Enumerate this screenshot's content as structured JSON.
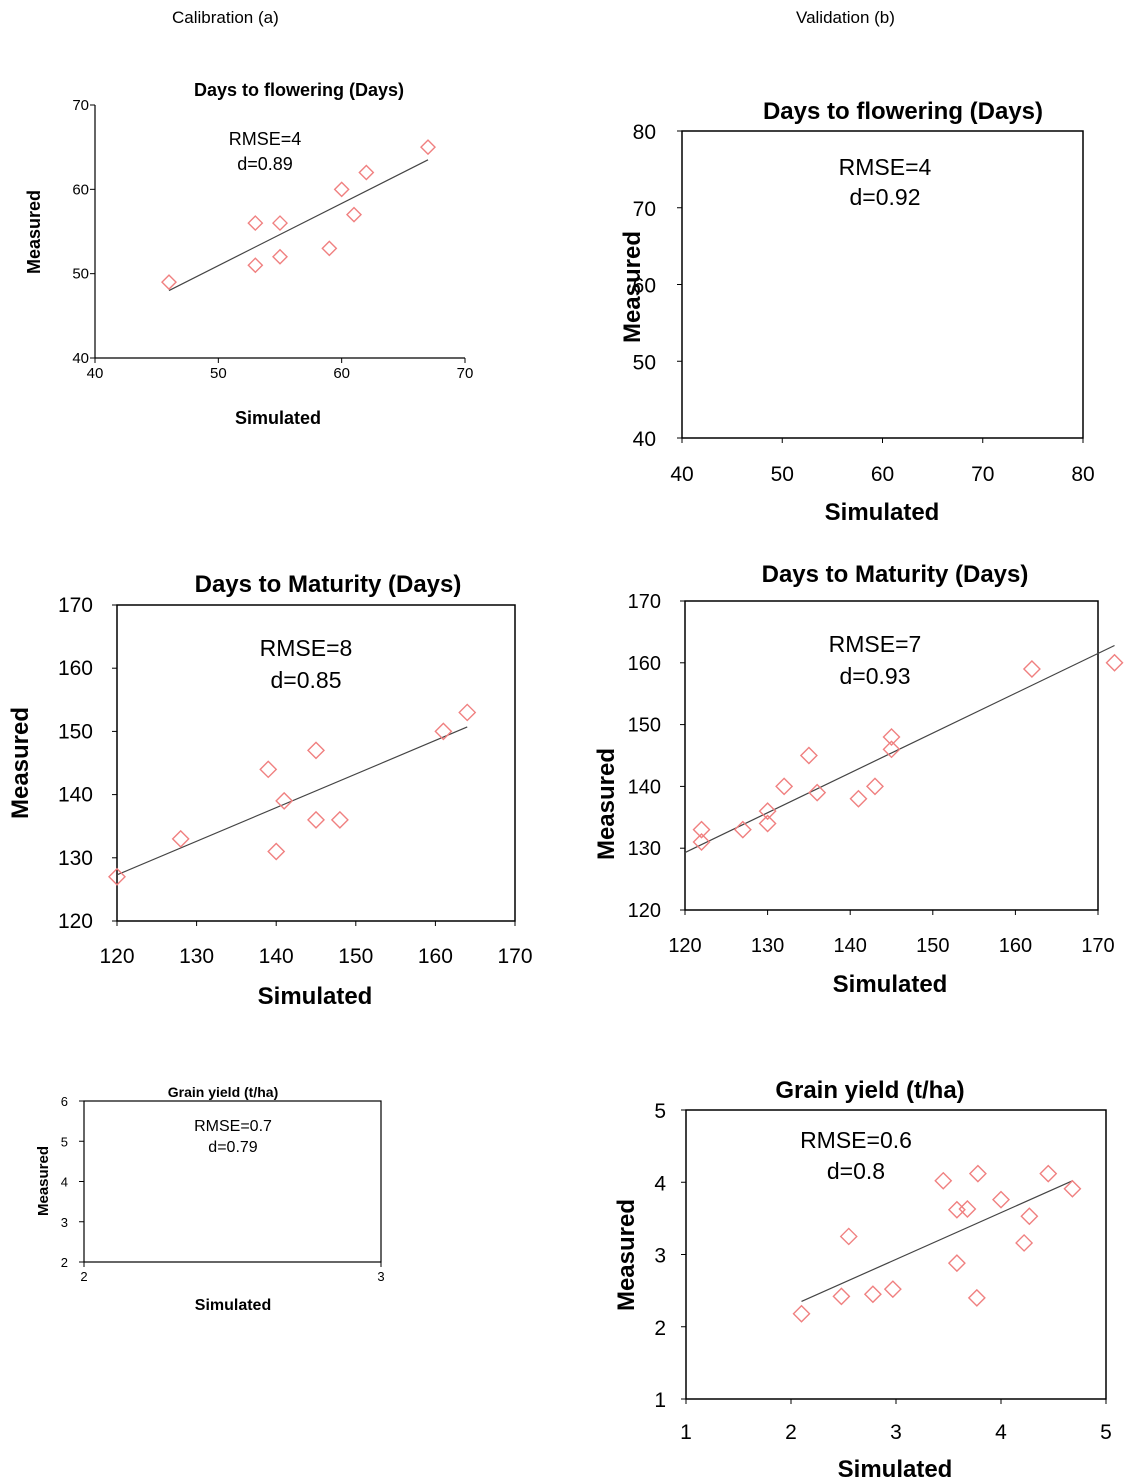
{
  "columns": {
    "left": "Calibration (a)",
    "right": "Validation (b)"
  },
  "chart_data": [
    {
      "type": "scatter",
      "panel": "calibration",
      "title": "Days to flowering  (Days)",
      "xlabel": "Simulated",
      "ylabel": "Measured",
      "xlim": [
        40,
        70
      ],
      "ylim": [
        40,
        70
      ],
      "xticks": [
        40,
        50,
        60,
        70
      ],
      "yticks": [
        40,
        50,
        60,
        70
      ],
      "stats": [
        "RMSE=4",
        "d=0.89"
      ],
      "points": [
        [
          46,
          49
        ],
        [
          53,
          56
        ],
        [
          53,
          51
        ],
        [
          55,
          56
        ],
        [
          55,
          52
        ],
        [
          59,
          53
        ],
        [
          60,
          60
        ],
        [
          61,
          57
        ],
        [
          62,
          62
        ],
        [
          67,
          65
        ]
      ],
      "trendline": [
        [
          46,
          48
        ],
        [
          67,
          63.5
        ]
      ],
      "marker_color": "#f08080"
    },
    {
      "type": "scatter",
      "panel": "validation",
      "title": "Days to flowering  (Days)",
      "xlabel": "Simulated",
      "ylabel": "Measured",
      "xlim": [
        40,
        80
      ],
      "ylim": [
        40,
        80
      ],
      "xticks": [
        40,
        50,
        60,
        70,
        80
      ],
      "yticks": [
        40,
        50,
        60,
        70,
        80
      ],
      "stats": [
        "RMSE=4",
        "d=0.92"
      ],
      "points": [],
      "trendline": [],
      "marker_color": "#f08080"
    },
    {
      "type": "scatter",
      "panel": "calibration",
      "title": "Days to Maturity  (Days)",
      "xlabel": "Simulated",
      "ylabel": "Measured",
      "xlim": [
        120,
        170
      ],
      "ylim": [
        120,
        170
      ],
      "xticks": [
        120,
        130,
        140,
        150,
        160,
        170
      ],
      "yticks": [
        120,
        130,
        140,
        150,
        160,
        170
      ],
      "stats": [
        "RMSE=8",
        "d=0.85"
      ],
      "points": [
        [
          120,
          127
        ],
        [
          128,
          133
        ],
        [
          139,
          144
        ],
        [
          140,
          131
        ],
        [
          141,
          139
        ],
        [
          145,
          147
        ],
        [
          145,
          136
        ],
        [
          148,
          136
        ],
        [
          161,
          150
        ],
        [
          164,
          153
        ]
      ],
      "trendline": [
        [
          120,
          127.3
        ],
        [
          164,
          150.7
        ]
      ],
      "marker_color": "#f08080"
    },
    {
      "type": "scatter",
      "panel": "validation",
      "title": "Days to Maturity  (Days)",
      "xlabel": "Simulated",
      "ylabel": "Measured",
      "xlim": [
        120,
        170
      ],
      "ylim": [
        120,
        170
      ],
      "xticks": [
        120,
        130,
        140,
        150,
        160,
        170
      ],
      "yticks": [
        120,
        130,
        140,
        150,
        160,
        170
      ],
      "stats": [
        "RMSE=7",
        "d=0.93"
      ],
      "points": [
        [
          122,
          133
        ],
        [
          122,
          131
        ],
        [
          127,
          133
        ],
        [
          130,
          136
        ],
        [
          130,
          134
        ],
        [
          132,
          140
        ],
        [
          135,
          145
        ],
        [
          136,
          139
        ],
        [
          141,
          138
        ],
        [
          143,
          140
        ],
        [
          145,
          148
        ],
        [
          145,
          146
        ],
        [
          162,
          159
        ],
        [
          172,
          160
        ]
      ],
      "trendline": [
        [
          120,
          129.3
        ],
        [
          172,
          162.8
        ]
      ],
      "marker_color": "#f08080"
    },
    {
      "type": "scatter",
      "panel": "calibration",
      "title": "Grain yield (t/ha)",
      "xlabel": "Simulated",
      "ylabel": "Measured",
      "xlim": [
        2,
        3
      ],
      "ylim": [
        2,
        6
      ],
      "xticks": [
        2,
        3
      ],
      "yticks": [
        2,
        3,
        4,
        5,
        6
      ],
      "stats": [
        "RMSE=0.7",
        "d=0.79"
      ],
      "points": [],
      "trendline": [],
      "marker_color": "#f08080"
    },
    {
      "type": "scatter",
      "panel": "validation",
      "title": "Grain yield (t/ha)",
      "xlabel": "Simulated",
      "ylabel": "Measured",
      "xlim": [
        1,
        5
      ],
      "ylim": [
        1,
        5
      ],
      "xticks": [
        1,
        2,
        3,
        4,
        5
      ],
      "yticks": [
        1,
        2,
        3,
        4,
        5
      ],
      "stats": [
        "RMSE=0.6",
        "d=0.8"
      ],
      "points": [
        [
          2.1,
          2.18
        ],
        [
          2.48,
          2.42
        ],
        [
          2.55,
          3.25
        ],
        [
          2.78,
          2.45
        ],
        [
          2.97,
          2.52
        ],
        [
          3.45,
          4.02
        ],
        [
          3.58,
          3.62
        ],
        [
          3.58,
          2.88
        ],
        [
          3.68,
          3.63
        ],
        [
          3.78,
          4.12
        ],
        [
          3.77,
          2.4
        ],
        [
          4.0,
          3.76
        ],
        [
          4.22,
          3.16
        ],
        [
          4.27,
          3.53
        ],
        [
          4.45,
          4.12
        ],
        [
          4.68,
          3.91
        ]
      ],
      "trendline": [
        [
          2.1,
          2.35
        ],
        [
          4.68,
          4.02
        ]
      ],
      "marker_color": "#f08080"
    }
  ]
}
